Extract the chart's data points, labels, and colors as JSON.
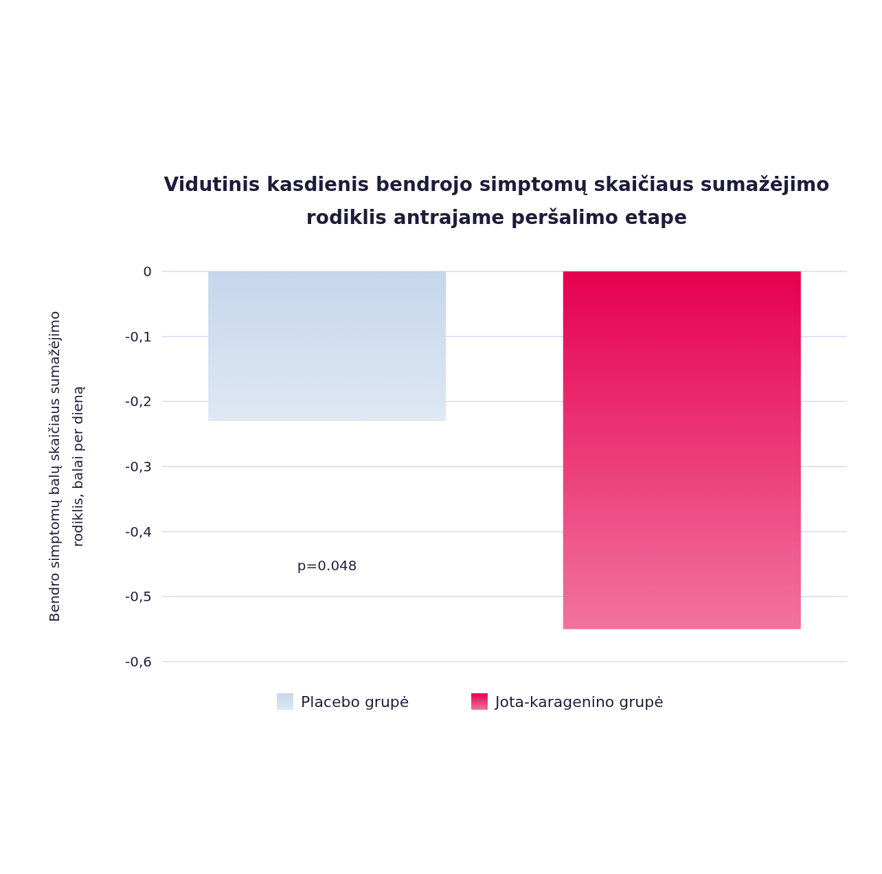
{
  "chart_data": {
    "type": "bar",
    "title": "Vidutinis kasdienis bendrojo simptomų skaičiaus sumažėjimo rodiklis antrajame peršalimo etape",
    "ylabel": "Bendro simptomų balų skaičiaus sumažėjimo rodiklis, balai per dieną",
    "categories": [
      null,
      null
    ],
    "series": [
      {
        "name": "Placebo grupė",
        "color": "#c5d6eb",
        "values": [
          -0.23,
          null
        ]
      },
      {
        "name": "Jota-karagenino grupė",
        "color": "#e6004f",
        "values": [
          null,
          -0.55
        ]
      }
    ],
    "ylim": [
      -0.6,
      0
    ],
    "yticks": [
      0,
      {
        "value": -0.1,
        "label": "-0,1"
      },
      {
        "value": -0.2,
        "label": "-0,2"
      },
      {
        "value": -0.3,
        "label": "-0,3"
      },
      {
        "value": -0.4,
        "label": "-0,4"
      },
      {
        "value": -0.5,
        "label": "-0,5"
      },
      {
        "value": -0.6,
        "label": "-0,6"
      }
    ],
    "grid": true,
    "legend": "bottom",
    "annotations": [
      "p=0.048"
    ]
  }
}
